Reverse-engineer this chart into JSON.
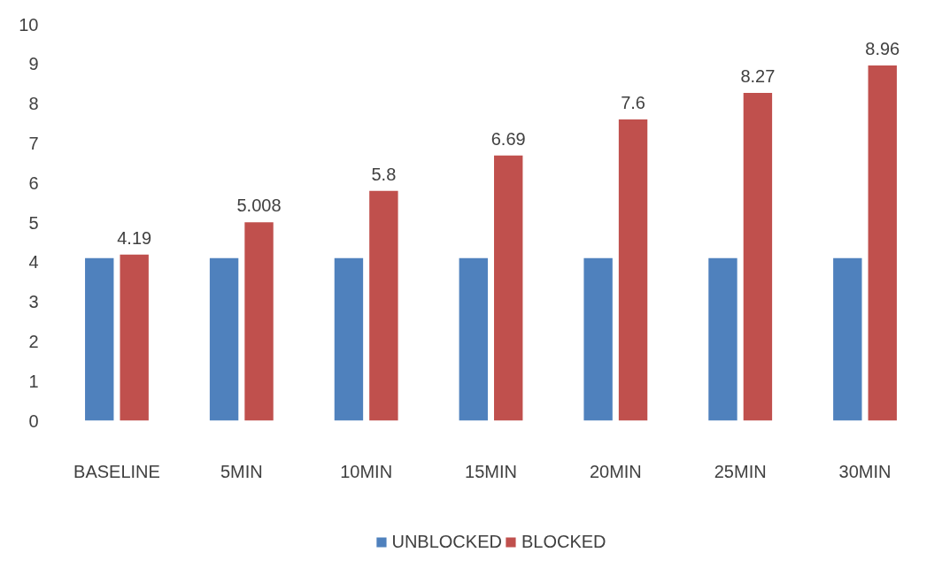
{
  "chart_data": {
    "type": "bar",
    "categories": [
      "BASELINE",
      "5MIN",
      "10MIN",
      "15MIN",
      "20MIN",
      "25MIN",
      "30MIN"
    ],
    "series": [
      {
        "name": "UNBLOCKED",
        "color": "#4f81bd",
        "values": [
          4.1,
          4.1,
          4.1,
          4.1,
          4.1,
          4.1,
          4.1
        ]
      },
      {
        "name": "BLOCKED",
        "color": "#c0504d",
        "values": [
          4.19,
          5.008,
          5.8,
          6.69,
          7.6,
          8.27,
          8.96
        ],
        "value_labels": [
          "4.19",
          "5.008",
          "5.8",
          "6.69",
          "7.6",
          "8.27",
          "8.96"
        ]
      }
    ],
    "ylim": [
      0,
      10
    ],
    "yticks": [
      0,
      1,
      2,
      3,
      4,
      5,
      6,
      7,
      8,
      9,
      10
    ],
    "grid": false,
    "legend": "bottom"
  }
}
